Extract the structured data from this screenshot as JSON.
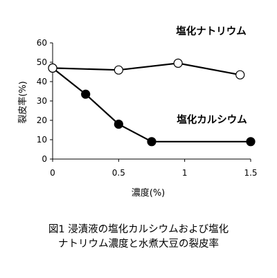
{
  "caption": {
    "line1": "図1 浸漬液の塩化カルシウムおよび塩化",
    "line2": "ナトリウム濃度と水煮大豆の裂皮率"
  },
  "chart_data": {
    "type": "line",
    "title": "",
    "xlabel": "濃度(%)",
    "ylabel": "裂皮率(%)",
    "xlim": [
      0,
      1.5
    ],
    "ylim": [
      0,
      60
    ],
    "x_ticks": [
      "0",
      "0.5",
      "1",
      "1.5"
    ],
    "y_ticks": [
      "0",
      "10",
      "20",
      "30",
      "40",
      "50",
      "60"
    ],
    "grid": false,
    "legend": "none (series labelled directly on plot)",
    "series": [
      {
        "name": "塩化ナトリウム",
        "marker": "open-circle",
        "color": "#000000",
        "points": [
          {
            "x": 0,
            "y": 47
          },
          {
            "x": 0.5,
            "y": 46
          },
          {
            "x": 0.95,
            "y": 49.5
          },
          {
            "x": 1.42,
            "y": 43.5
          }
        ]
      },
      {
        "name": "塩化カルシウム",
        "marker": "filled-circle",
        "color": "#000000",
        "points": [
          {
            "x": 0,
            "y": 47
          },
          {
            "x": 0.25,
            "y": 33.5
          },
          {
            "x": 0.5,
            "y": 18
          },
          {
            "x": 0.75,
            "y": 9
          },
          {
            "x": 1.5,
            "y": 9
          }
        ]
      }
    ]
  }
}
